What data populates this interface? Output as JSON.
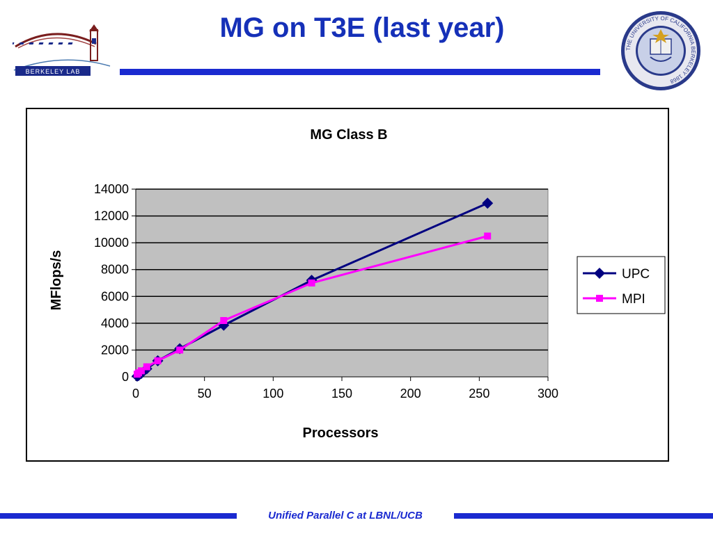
{
  "slide": {
    "title": "MG on T3E (last year)",
    "footer": "Unified Parallel C at LBNL/UCB",
    "left_logo_text": "BERKELEY LAB",
    "right_seal_text": "THE UNIVERSITY OF CALIFORNIA BERKELEY 1868",
    "accent_color": "#1a2ad0",
    "title_color": "#1530b8"
  },
  "chart_data": {
    "type": "line",
    "title": "MG Class B",
    "xlabel": "Processors",
    "ylabel": "MFlops/s",
    "xlim": [
      0,
      300
    ],
    "ylim": [
      0,
      14000
    ],
    "xticks": [
      "0",
      "50",
      "100",
      "150",
      "200",
      "250",
      "300"
    ],
    "yticks": [
      "0",
      "2000",
      "4000",
      "6000",
      "8000",
      "10000",
      "12000",
      "14000"
    ],
    "grid": "horizontal",
    "plot_background": "#c0c0c0",
    "legend_position": "right",
    "series": [
      {
        "name": "UPC",
        "color": "#000080",
        "marker": "diamond",
        "x": [
          1,
          2,
          4,
          8,
          16,
          32,
          64,
          128,
          256
        ],
        "y": [
          50,
          100,
          250,
          600,
          1200,
          2100,
          3850,
          7200,
          12950
        ]
      },
      {
        "name": "MPI",
        "color": "#ff00ff",
        "marker": "square",
        "x": [
          1,
          2,
          4,
          8,
          16,
          32,
          64,
          128,
          256
        ],
        "y": [
          200,
          300,
          450,
          750,
          1200,
          2000,
          4200,
          7000,
          10500
        ]
      }
    ]
  }
}
